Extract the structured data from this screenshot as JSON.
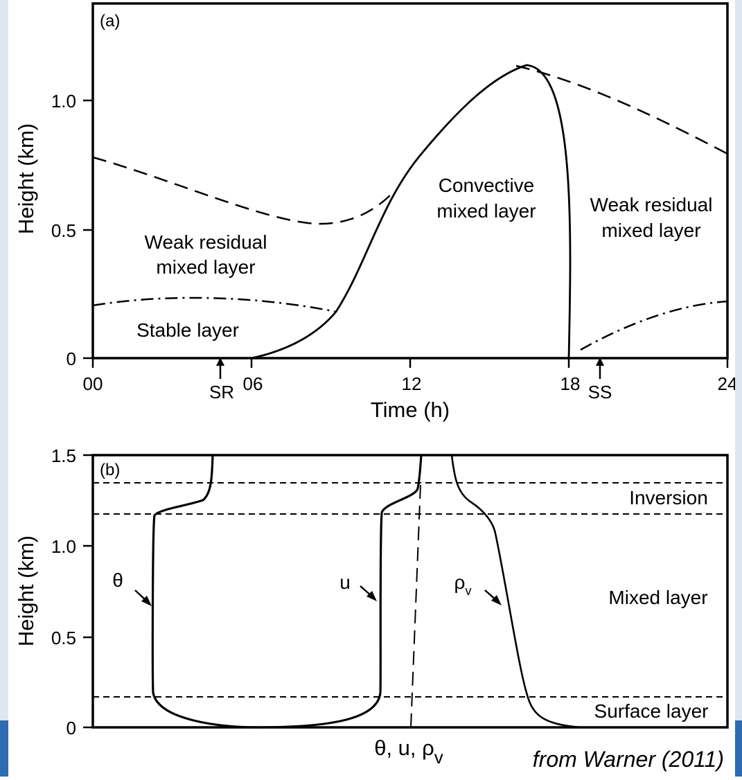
{
  "panel_a": {
    "tag": "(a)",
    "ylabel": "Height (km)",
    "xlabel": "Time (h)",
    "y_ticks": [
      "0",
      "0.5",
      "1.0"
    ],
    "x_ticks": [
      "00",
      "06",
      "12",
      "18",
      "24"
    ],
    "markers": {
      "sunrise": "SR",
      "sunset": "SS"
    },
    "regions": {
      "residual_left_1": "Weak residual",
      "residual_left_2": "mixed layer",
      "stable": "Stable layer",
      "convective_1": "Convective",
      "convective_2": "mixed layer",
      "residual_right_1": "Weak residual",
      "residual_right_2": "mixed layer"
    }
  },
  "panel_b": {
    "tag": "(b)",
    "ylabel": "Height (km)",
    "y_ticks": [
      "0",
      "0.5",
      "1.0",
      "1.5"
    ],
    "layers": {
      "inversion": "Inversion",
      "mixed": "Mixed layer",
      "surface": "Surface layer"
    },
    "profiles": {
      "theta": "θ",
      "u": "u",
      "rho_main": "ρ",
      "rho_sub": "v"
    },
    "xlabel_main": "θ, u, ρ",
    "xlabel_sub": "v"
  },
  "credit": "from Warner (2011)"
}
